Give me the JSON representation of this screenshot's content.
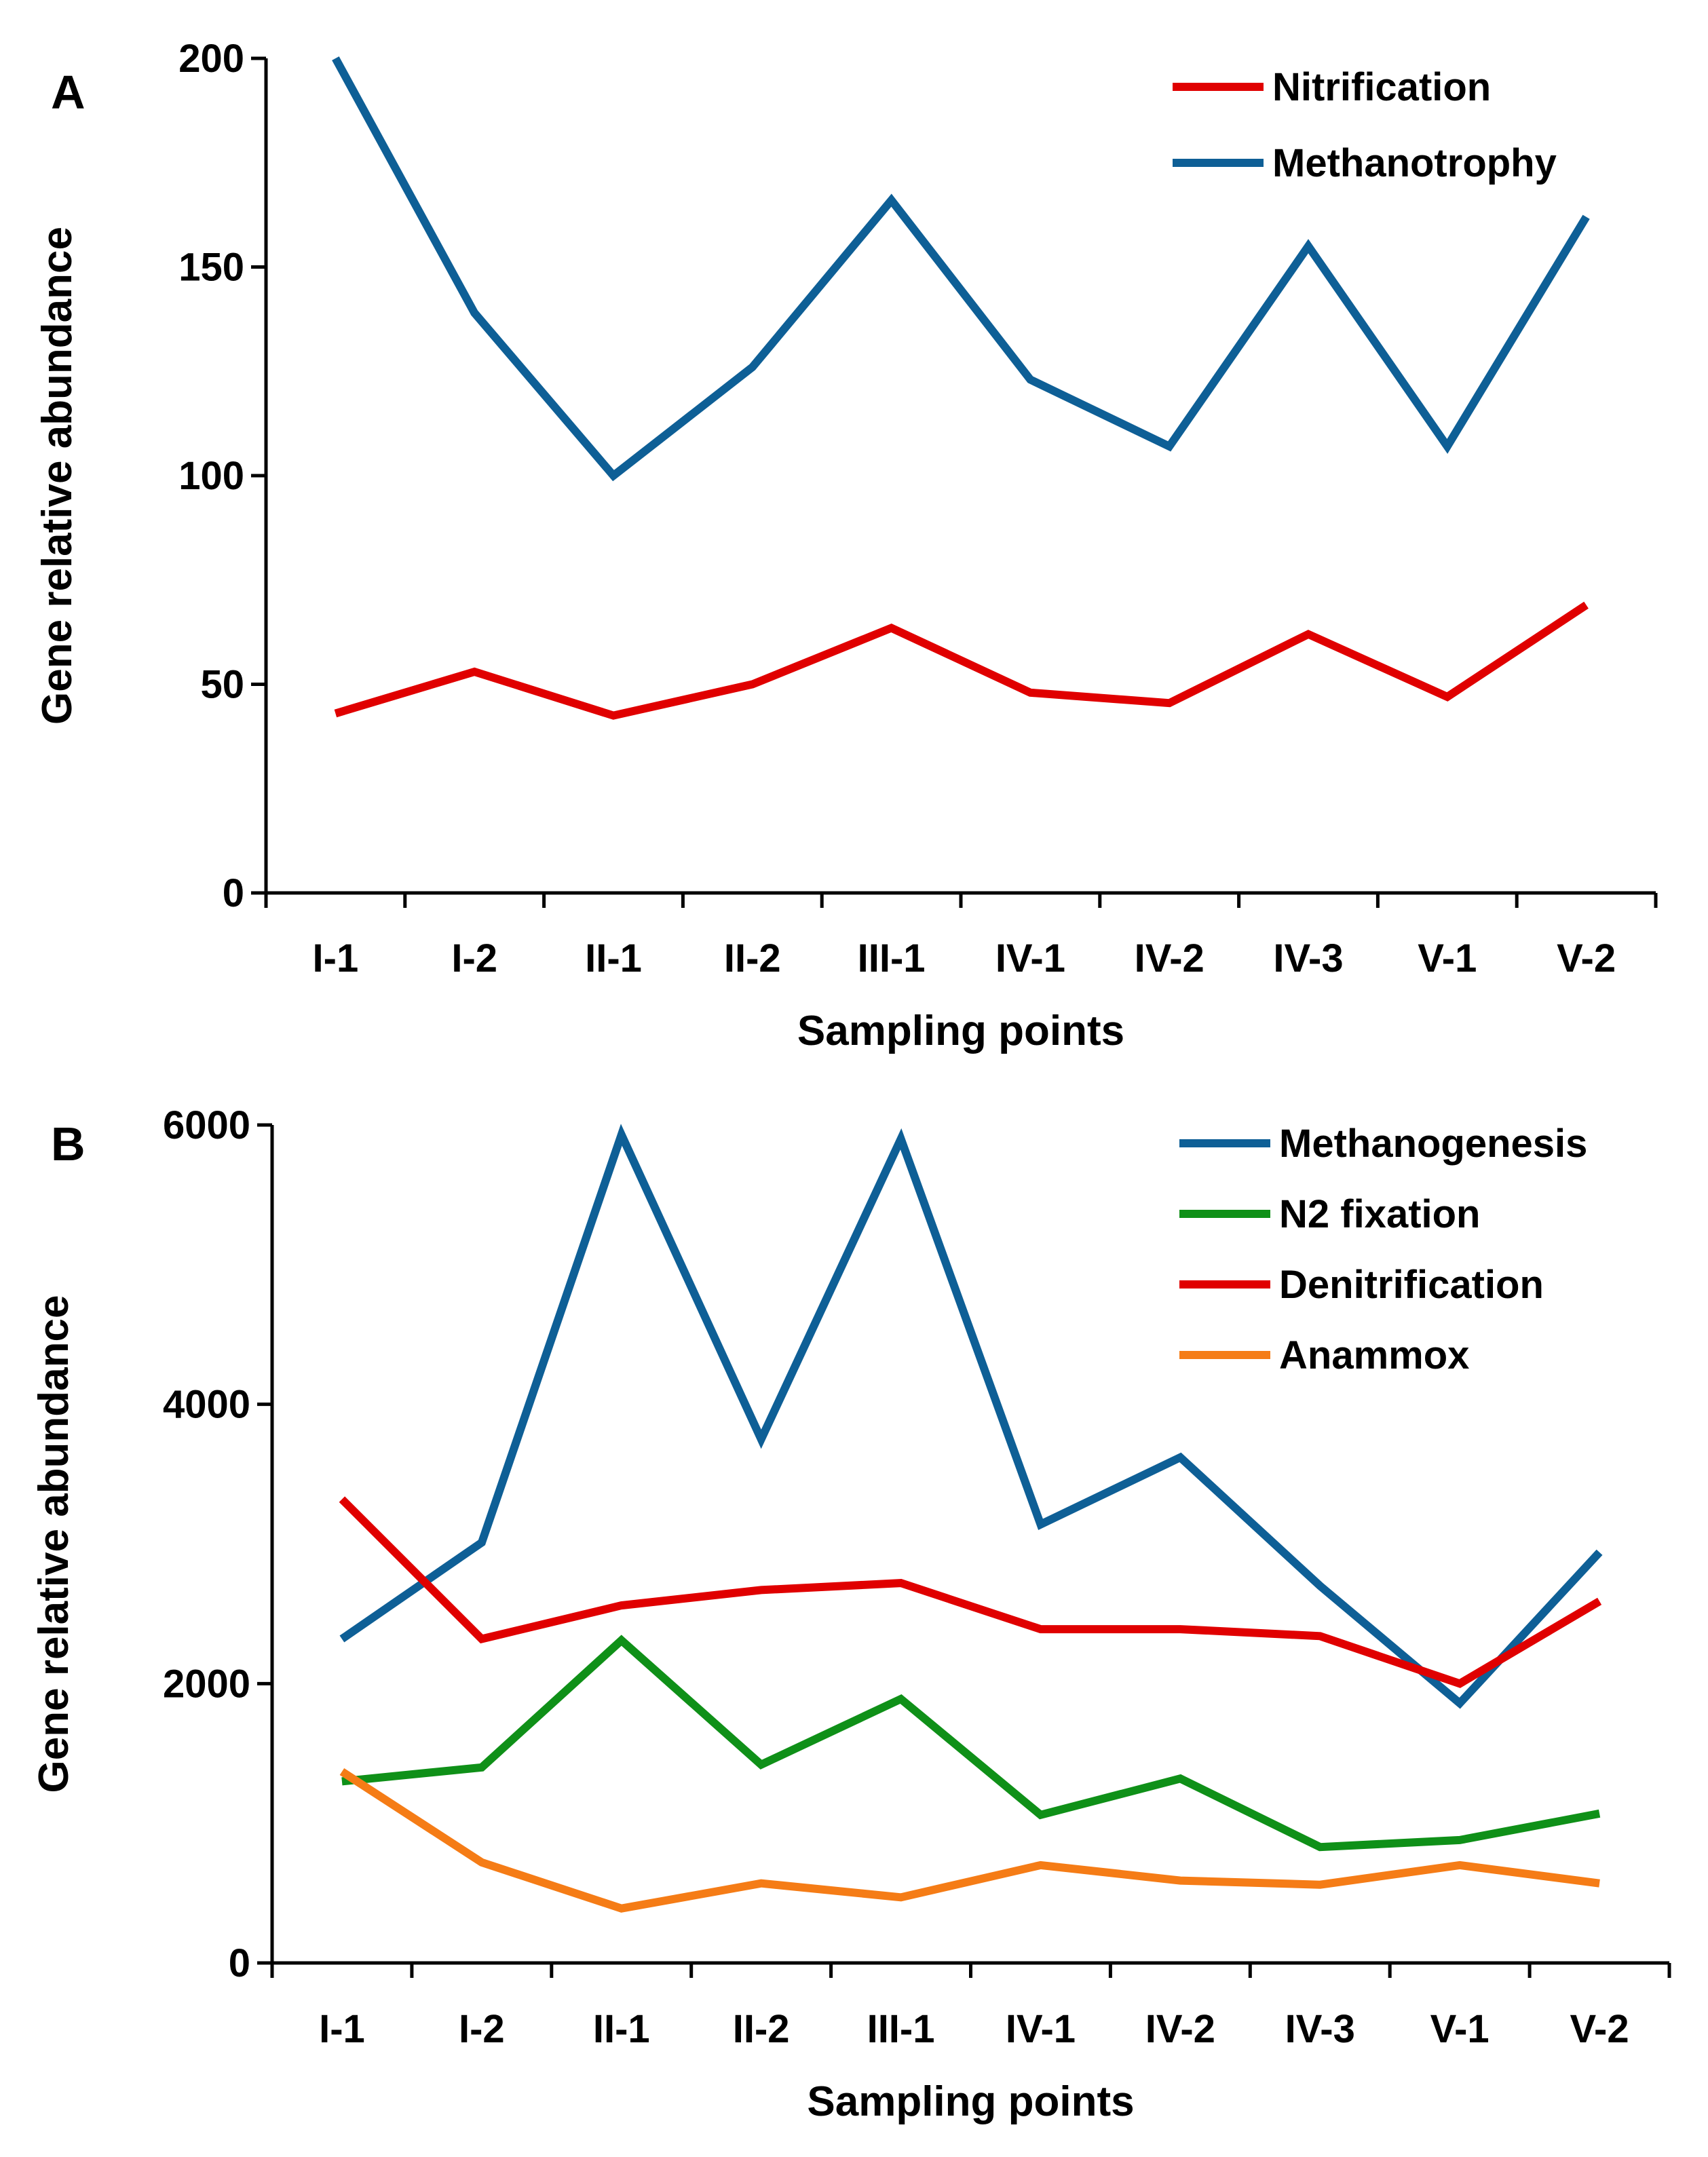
{
  "chart_data": [
    {
      "panel": "A",
      "type": "line",
      "title": "",
      "xlabel": "Sampling points",
      "ylabel": "Gene relative abundance",
      "categories": [
        "I-1",
        "I-2",
        "II-1",
        "II-2",
        "III-1",
        "IV-1",
        "IV-2",
        "IV-3",
        "V-1",
        "V-2"
      ],
      "ylim": [
        0,
        200
      ],
      "yticks": [
        0,
        50,
        100,
        150,
        200
      ],
      "grid": false,
      "legend_position": "top-right",
      "series": [
        {
          "name": "Nitrification",
          "color": "#e00000",
          "values": [
            43,
            53,
            42.5,
            50,
            63.5,
            48,
            45.5,
            62,
            47,
            69
          ]
        },
        {
          "name": "Methanotrophy",
          "color": "#0e5f96",
          "values": [
            200,
            139,
            100,
            126,
            166,
            123,
            107,
            155,
            107,
            162
          ]
        }
      ]
    },
    {
      "panel": "B",
      "type": "line",
      "title": "",
      "xlabel": "Sampling points",
      "ylabel": "Gene relative abundance",
      "categories": [
        "I-1",
        "I-2",
        "II-1",
        "II-2",
        "III-1",
        "IV-1",
        "IV-2",
        "IV-3",
        "V-1",
        "V-2"
      ],
      "ylim": [
        0,
        6000
      ],
      "yticks": [
        0,
        2000,
        4000,
        6000
      ],
      "grid": false,
      "legend_position": "top-right",
      "series": [
        {
          "name": "Methanogenesis",
          "color": "#0e5f96",
          "values": [
            2320,
            3010,
            5930,
            3750,
            5900,
            3140,
            3620,
            2700,
            1860,
            2940
          ]
        },
        {
          "name": "N2 fixation",
          "color": "#0f9018",
          "values": [
            1300,
            1400,
            2310,
            1420,
            1890,
            1060,
            1320,
            830,
            880,
            1070
          ]
        },
        {
          "name": "Denitrification",
          "color": "#e00000",
          "values": [
            3320,
            2320,
            2560,
            2670,
            2720,
            2390,
            2390,
            2340,
            2000,
            2590
          ]
        },
        {
          "name": "Anammox",
          "color": "#f57c16",
          "values": [
            1370,
            720,
            390,
            570,
            470,
            700,
            590,
            560,
            700,
            570
          ]
        }
      ]
    }
  ]
}
